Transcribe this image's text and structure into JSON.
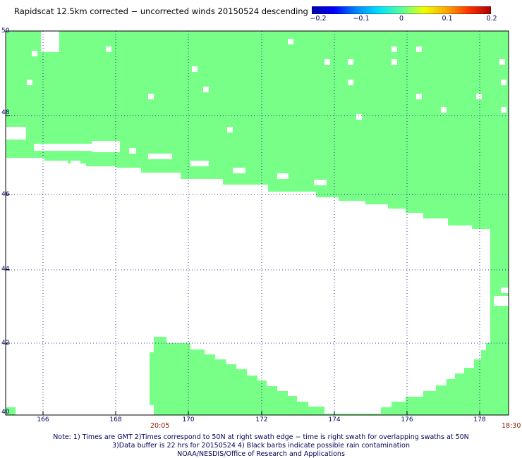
{
  "title": "Rapidscat 12.5km corrected − uncorrected winds 20150524 descending",
  "colorbar": {
    "labels": [
      "−0.2",
      "−0.1",
      "0",
      "0.1",
      "0.2"
    ],
    "colors": [
      "#0000aa",
      "#0000ff",
      "#0088ff",
      "#00e0ff",
      "#55ff99",
      "#eeff00",
      "#ffaa00",
      "#ff3300",
      "#aa0000"
    ]
  },
  "axes": {
    "lat_labels": [
      "50",
      "48",
      "46",
      "44",
      "42",
      "40"
    ],
    "lon_labels": [
      "166",
      "168",
      "170",
      "172",
      "174",
      "176",
      "178"
    ]
  },
  "times": {
    "left": "20:05",
    "right": "18:30"
  },
  "notes": [
    "Note: 1) Times are GMT 2)Times correspond to 50N at right swath edge − time is right swath for overlapping swaths at 50N",
    "3)Data buffer is 22 hrs for 20150524 4) Black barbs indicate possible rain contamination",
    "NOAA/NESDIS/Office of Research and Applications"
  ],
  "map_style": {
    "swath_color": "#77ff88",
    "grid_color": "#000077"
  }
}
